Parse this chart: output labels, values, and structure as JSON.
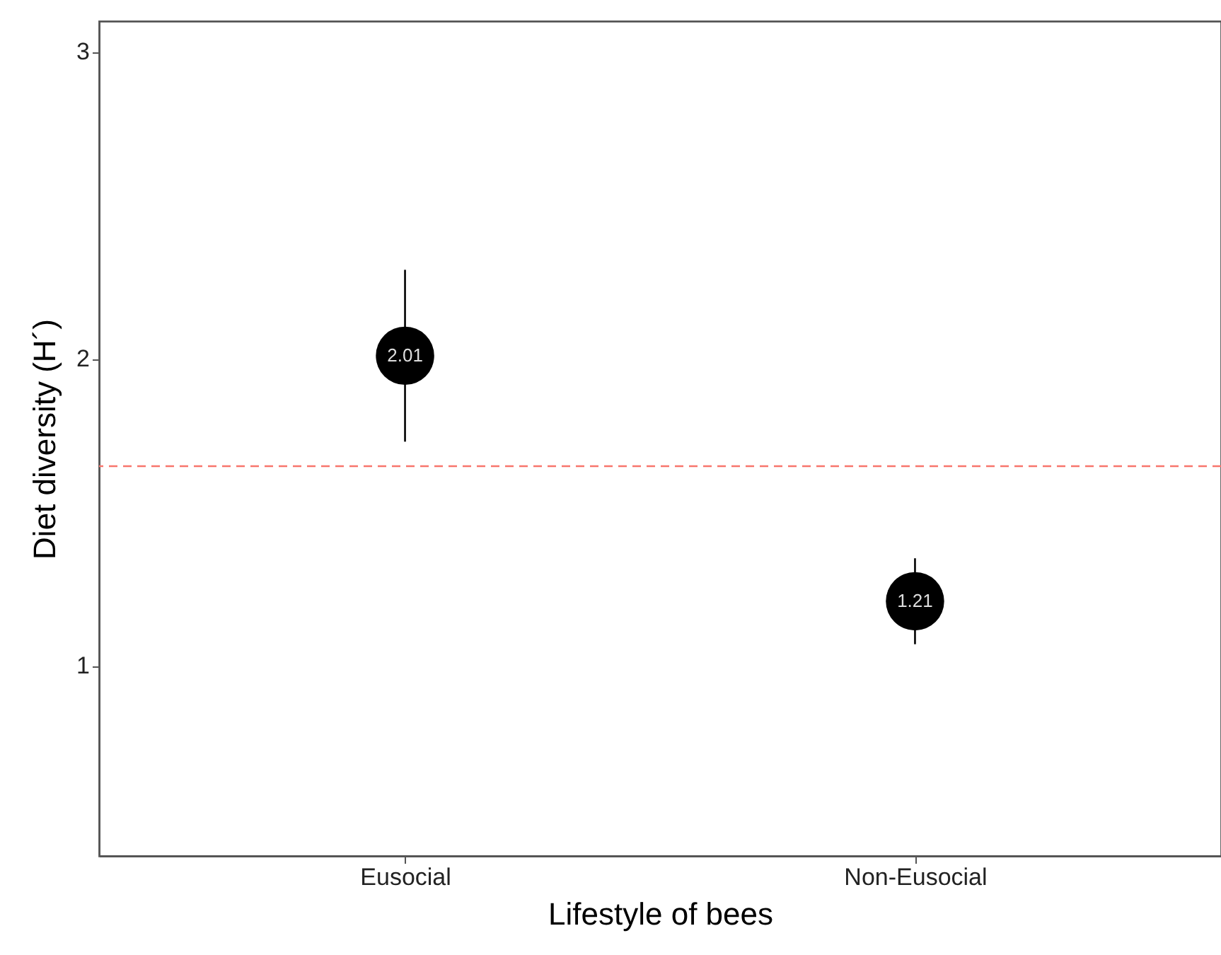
{
  "chart_data": {
    "type": "scatter",
    "xlabel": "Lifestyle of bees",
    "ylabel": "Diet diversity (H´)",
    "categories": [
      "Eusocial",
      "Non-Eusocial"
    ],
    "values": [
      2.01,
      1.21
    ],
    "color": "#000000",
    "errors": [
      [
        1.73,
        2.29
      ],
      [
        1.07,
        1.35
      ]
    ],
    "data_labels": true,
    "marker": "circle",
    "ylim": [
      0.38,
      3.1
    ],
    "yticks": [
      1,
      2,
      3
    ],
    "grid": false,
    "ref_lines": [
      {
        "axis": "y",
        "value": 1.65,
        "label": null,
        "color": "#f8766d",
        "line_style": "dashed"
      }
    ]
  }
}
